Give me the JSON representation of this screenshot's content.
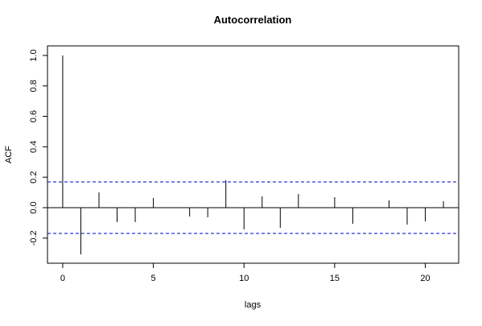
{
  "chart_data": {
    "type": "acf",
    "title": "Autocorrelation",
    "x_label": "lags",
    "y_label": "ACF",
    "x": [
      0,
      1,
      2,
      3,
      4,
      5,
      6,
      7,
      8,
      9,
      10,
      11,
      12,
      13,
      14,
      15,
      16,
      17,
      18,
      19,
      20,
      21
    ],
    "values": [
      1.0,
      -0.307,
      0.1,
      -0.095,
      -0.095,
      0.063,
      -0.003,
      -0.058,
      -0.063,
      0.18,
      -0.143,
      0.074,
      -0.132,
      0.09,
      0.003,
      0.069,
      -0.106,
      0.002,
      0.048,
      -0.111,
      -0.09,
      0.042
    ],
    "color": "#000000",
    "confidence_lines": [
      0.169,
      -0.169
    ],
    "confidence_color": "#0000cc",
    "xlim": [
      -0.84,
      21.84
    ],
    "xticks": [
      0,
      5,
      10,
      15,
      20
    ],
    "ylim": [
      -0.365,
      1.063
    ],
    "yticks": [
      -0.2,
      {
        "value": 0,
        "label": "0.0"
      },
      0.2,
      0.4,
      0.6,
      0.8,
      {
        "value": 1,
        "label": "1.0"
      }
    ]
  }
}
